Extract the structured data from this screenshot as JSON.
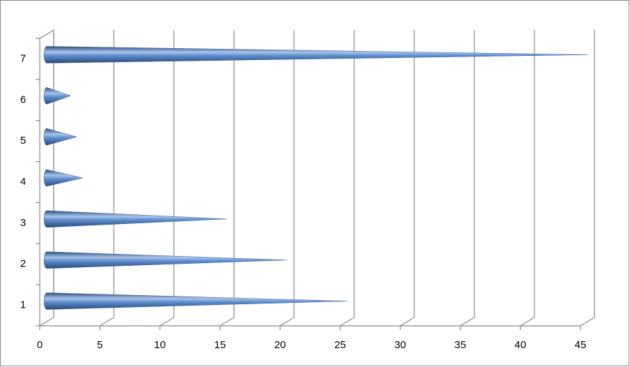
{
  "chart_data": {
    "type": "bar",
    "orientation": "horizontal",
    "shape": "cone",
    "categories": [
      "1",
      "2",
      "3",
      "4",
      "5",
      "6",
      "7"
    ],
    "values": [
      25,
      20,
      15,
      3,
      2.5,
      2,
      45
    ],
    "color": "#4f81bd",
    "xlim": [
      0,
      45
    ],
    "xticks": [
      0,
      5,
      10,
      15,
      20,
      25,
      30,
      35,
      40,
      45
    ],
    "grid": true
  }
}
